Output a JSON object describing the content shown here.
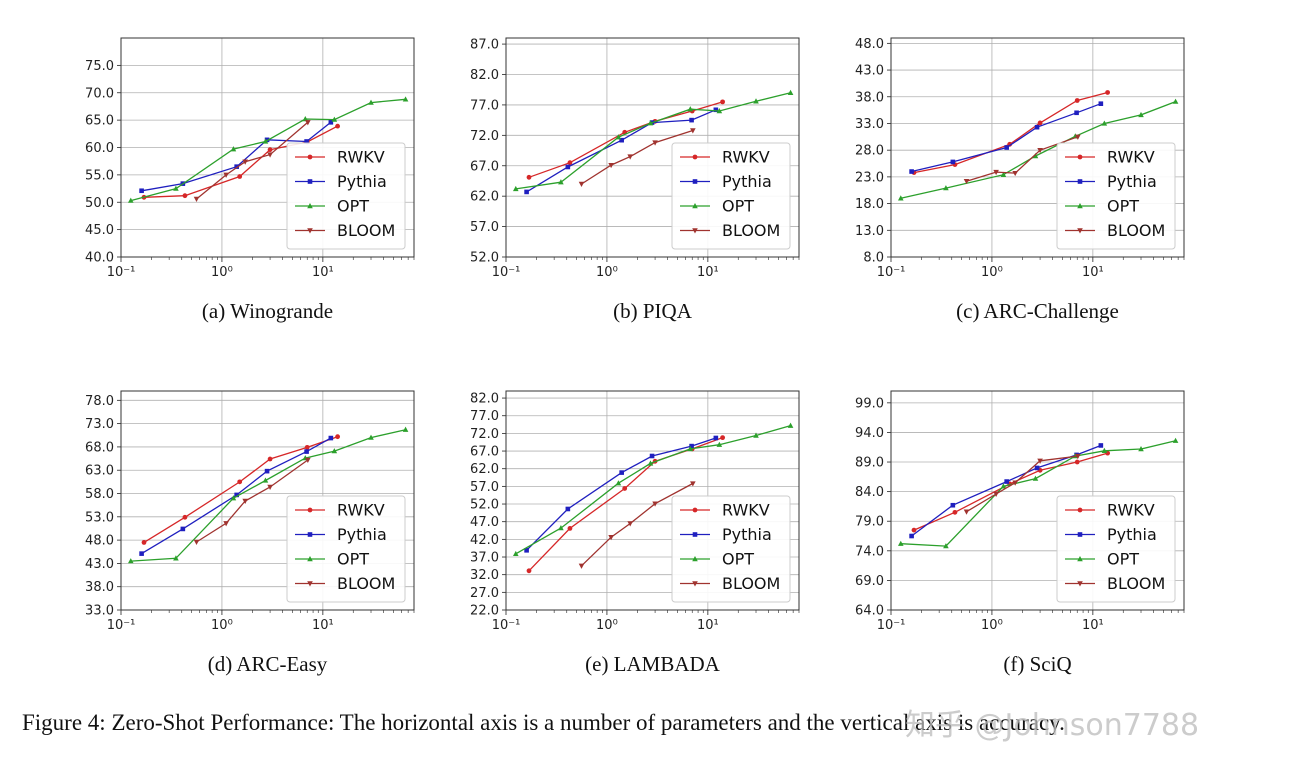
{
  "figure_caption": "Figure 4: Zero-Shot Performance: The horizontal axis is a number of parameters and the vertical axis is accuracy.",
  "watermark": "知乎 @Johnson7788",
  "colors": {
    "RWKV": "#d62728",
    "Pythia": "#1f1fbf",
    "OPT": "#2ca02c",
    "BLOOM": "#a0332f"
  },
  "chart_data": [
    {
      "type": "line",
      "title": "(a) Winogrande",
      "xscale": "log",
      "xlim": [
        0.1,
        80
      ],
      "xticks": [
        "10⁻¹",
        "10⁰",
        "10¹"
      ],
      "ylim": [
        40.0,
        80.0
      ],
      "yticks": [
        "40.0",
        "45.0",
        "50.0",
        "55.0",
        "60.0",
        "65.0",
        "70.0",
        "75.0"
      ],
      "legend": "lower-right",
      "series": [
        {
          "name": "RWKV",
          "x": [
            0.169,
            0.43,
            1.5,
            3,
            7,
            14
          ],
          "y": [
            50.9,
            51.2,
            54.7,
            59.6,
            61.0,
            63.9
          ]
        },
        {
          "name": "Pythia",
          "x": [
            0.16,
            0.41,
            1.4,
            2.8,
            6.9,
            12
          ],
          "y": [
            52.1,
            53.4,
            56.5,
            61.4,
            61.1,
            64.6
          ]
        },
        {
          "name": "OPT",
          "x": [
            0.125,
            0.35,
            1.3,
            2.7,
            6.7,
            13,
            30,
            66
          ],
          "y": [
            50.3,
            52.5,
            59.7,
            61.1,
            65.2,
            65.1,
            68.2,
            68.8
          ]
        },
        {
          "name": "BLOOM",
          "x": [
            0.56,
            1.1,
            1.7,
            3,
            7.1
          ],
          "y": [
            50.6,
            55.0,
            57.4,
            58.7,
            64.6
          ]
        }
      ]
    },
    {
      "type": "line",
      "title": "(b) PIQA",
      "xscale": "log",
      "xlim": [
        0.1,
        80
      ],
      "xticks": [
        "10⁻¹",
        "10⁰",
        "10¹"
      ],
      "ylim": [
        52.0,
        88.0
      ],
      "yticks": [
        "52.0",
        "57.0",
        "62.0",
        "67.0",
        "72.0",
        "77.0",
        "82.0",
        "87.0"
      ],
      "legend": "lower-right",
      "series": [
        {
          "name": "RWKV",
          "x": [
            0.169,
            0.43,
            1.5,
            3,
            7,
            14
          ],
          "y": [
            65.1,
            67.5,
            72.5,
            74.3,
            76.0,
            77.5
          ]
        },
        {
          "name": "Pythia",
          "x": [
            0.16,
            0.41,
            1.4,
            2.8,
            6.9,
            12
          ],
          "y": [
            62.7,
            66.8,
            71.2,
            74.1,
            74.5,
            76.2
          ]
        },
        {
          "name": "OPT",
          "x": [
            0.125,
            0.35,
            1.3,
            2.7,
            6.7,
            13,
            30,
            66
          ],
          "y": [
            63.2,
            64.3,
            71.7,
            74.0,
            76.3,
            76.0,
            77.6,
            79.0
          ]
        },
        {
          "name": "BLOOM",
          "x": [
            0.56,
            1.1,
            1.7,
            3,
            7.1
          ],
          "y": [
            64.0,
            67.1,
            68.5,
            70.8,
            72.8
          ]
        }
      ]
    },
    {
      "type": "line",
      "title": "(c) ARC-Challenge",
      "xscale": "log",
      "xlim": [
        0.1,
        80
      ],
      "xticks": [
        "10⁻¹",
        "10⁰",
        "10¹"
      ],
      "ylim": [
        8.0,
        49.0
      ],
      "yticks": [
        "8.0",
        "13.0",
        "18.0",
        "23.0",
        "28.0",
        "33.0",
        "38.0",
        "43.0",
        "48.0"
      ],
      "legend": "lower-right",
      "series": [
        {
          "name": "RWKV",
          "x": [
            0.169,
            0.43,
            1.5,
            3,
            7,
            14
          ],
          "y": [
            23.8,
            25.3,
            29.1,
            33.1,
            37.3,
            38.8
          ]
        },
        {
          "name": "Pythia",
          "x": [
            0.16,
            0.41,
            1.4,
            2.8,
            6.9,
            12
          ],
          "y": [
            24.0,
            25.8,
            28.5,
            32.3,
            35.0,
            36.7
          ]
        },
        {
          "name": "OPT",
          "x": [
            0.125,
            0.35,
            1.3,
            2.7,
            6.7,
            13,
            30,
            66
          ],
          "y": [
            19.0,
            20.9,
            23.4,
            26.9,
            30.6,
            33.0,
            34.6,
            37.1
          ]
        },
        {
          "name": "BLOOM",
          "x": [
            0.56,
            1.1,
            1.7,
            3,
            7.1
          ],
          "y": [
            22.2,
            23.9,
            23.7,
            28.0,
            30.5
          ]
        }
      ]
    },
    {
      "type": "line",
      "title": "(d) ARC-Easy",
      "xscale": "log",
      "xlim": [
        0.1,
        80
      ],
      "xticks": [
        "10⁻¹",
        "10⁰",
        "10¹"
      ],
      "ylim": [
        33.0,
        80.0
      ],
      "yticks": [
        "33.0",
        "38.0",
        "43.0",
        "48.0",
        "53.0",
        "58.0",
        "63.0",
        "68.0",
        "73.0",
        "78.0"
      ],
      "legend": "lower-right",
      "series": [
        {
          "name": "RWKV",
          "x": [
            0.169,
            0.43,
            1.5,
            3,
            7,
            14
          ],
          "y": [
            47.5,
            52.9,
            60.5,
            65.4,
            67.9,
            70.2
          ]
        },
        {
          "name": "Pythia",
          "x": [
            0.16,
            0.41,
            1.4,
            2.8,
            6.9,
            12
          ],
          "y": [
            45.1,
            50.4,
            57.7,
            62.8,
            67.0,
            69.9
          ]
        },
        {
          "name": "OPT",
          "x": [
            0.125,
            0.35,
            1.3,
            2.7,
            6.7,
            13,
            30,
            66
          ],
          "y": [
            43.5,
            44.1,
            57.0,
            60.8,
            65.6,
            67.1,
            70.0,
            71.7
          ]
        },
        {
          "name": "BLOOM",
          "x": [
            0.56,
            1.1,
            1.7,
            3,
            7.1
          ],
          "y": [
            47.6,
            51.6,
            56.4,
            59.4,
            65.2
          ]
        }
      ]
    },
    {
      "type": "line",
      "title": "(e) LAMBADA",
      "xscale": "log",
      "xlim": [
        0.1,
        80
      ],
      "xticks": [
        "10⁻¹",
        "10⁰",
        "10¹"
      ],
      "ylim": [
        22.0,
        84.0
      ],
      "yticks": [
        "22.0",
        "27.0",
        "32.0",
        "37.0",
        "42.0",
        "47.0",
        "52.0",
        "57.0",
        "62.0",
        "67.0",
        "72.0",
        "77.0",
        "82.0"
      ],
      "legend": "lower-right",
      "series": [
        {
          "name": "RWKV",
          "x": [
            0.169,
            0.43,
            1.5,
            3,
            7,
            14
          ],
          "y": [
            33.1,
            45.1,
            56.4,
            64.1,
            67.6,
            70.8
          ]
        },
        {
          "name": "Pythia",
          "x": [
            0.16,
            0.41,
            1.4,
            2.8,
            6.9,
            12
          ],
          "y": [
            38.9,
            50.6,
            60.9,
            65.6,
            68.4,
            70.7
          ]
        },
        {
          "name": "OPT",
          "x": [
            0.125,
            0.35,
            1.3,
            2.7,
            6.7,
            13,
            30,
            66
          ],
          "y": [
            37.9,
            45.2,
            57.9,
            63.5,
            67.6,
            68.8,
            71.4,
            74.2
          ]
        },
        {
          "name": "BLOOM",
          "x": [
            0.56,
            1.1,
            1.7,
            3,
            7.1
          ],
          "y": [
            34.5,
            42.6,
            46.5,
            52.1,
            57.8
          ]
        }
      ]
    },
    {
      "type": "line",
      "title": "(f) SciQ",
      "xscale": "log",
      "xlim": [
        0.1,
        80
      ],
      "xticks": [
        "10⁻¹",
        "10⁰",
        "10¹"
      ],
      "ylim": [
        64.0,
        101.0
      ],
      "yticks": [
        "64.0",
        "69.0",
        "74.0",
        "79.0",
        "84.0",
        "89.0",
        "94.0",
        "99.0"
      ],
      "legend": "lower-right",
      "series": [
        {
          "name": "RWKV",
          "x": [
            0.169,
            0.43,
            1.5,
            3,
            7,
            14
          ],
          "y": [
            77.5,
            80.5,
            85.3,
            87.6,
            89.0,
            90.5
          ]
        },
        {
          "name": "Pythia",
          "x": [
            0.16,
            0.41,
            1.4,
            2.8,
            6.9,
            12
          ],
          "y": [
            76.5,
            81.7,
            85.7,
            88.0,
            90.2,
            91.8
          ]
        },
        {
          "name": "OPT",
          "x": [
            0.125,
            0.35,
            1.3,
            2.7,
            6.7,
            13,
            30,
            66
          ],
          "y": [
            75.2,
            74.8,
            84.9,
            86.2,
            90.0,
            90.9,
            91.2,
            92.6
          ]
        },
        {
          "name": "BLOOM",
          "x": [
            0.56,
            1.1,
            1.7,
            3,
            7.1
          ],
          "y": [
            80.6,
            83.6,
            85.5,
            89.2,
            90.0
          ]
        }
      ]
    }
  ]
}
